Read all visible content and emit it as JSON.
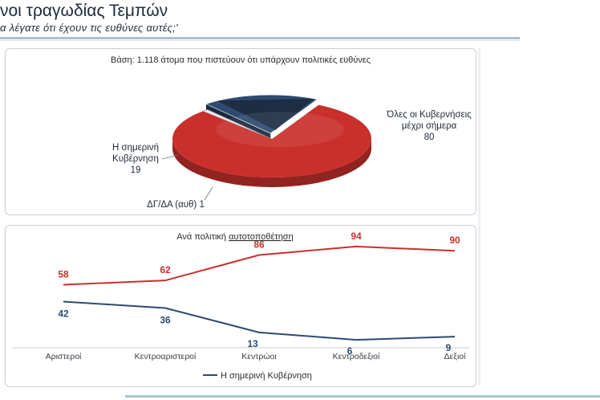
{
  "header": {
    "title": "νοι τραγωδίας Τεμπών",
    "subtitle": "α λέγατε ότι έχουν τις ευθύνες αυτές;'"
  },
  "colors": {
    "red": "#c9302c",
    "blue": "#2e4a70",
    "dark": "#1c2a3a"
  },
  "chart_data": [
    {
      "type": "pie",
      "title": "Βάση: 1.118 άτομα που πιστεύουν ότι υπάρχουν πολιτικές ευθύνες",
      "slices": [
        {
          "label_lines": [
            "Όλες οι Κυβερνήσεις",
            "μέχρι σήμερα"
          ],
          "value": 80,
          "value_label": "80",
          "color": "#c9302c"
        },
        {
          "label_lines": [
            "Η σημερινή",
            "Κυβέρνηση"
          ],
          "value": 19,
          "value_label": "19",
          "color": "#2e4a70"
        },
        {
          "label_lines": [
            "ΔΓ/ΔΑ (αυθ)"
          ],
          "value": 1,
          "value_label": "1",
          "color": "#e9e9e9"
        }
      ]
    },
    {
      "type": "line",
      "title_prefix": "Ανά πολιτική ",
      "title_underlined": "αυτοτοποθέτηση",
      "categories": [
        "Αριστεροί",
        "Κεντροαριστεροί",
        "Κεντρώοι",
        "Κεντροδεξιοί",
        "Δεξιοί"
      ],
      "ylim": [
        0,
        100
      ],
      "legend_position": "bottom",
      "series": [
        {
          "values": [
            58,
            62,
            86,
            94,
            90
          ],
          "labels": [
            "58",
            "62",
            "86",
            "94",
            "90"
          ],
          "color": "#c9302c"
        },
        {
          "name": "Η σημερινή Κυβέρνηση",
          "values": [
            42,
            36,
            13,
            6,
            9
          ],
          "labels": [
            "42",
            "36",
            "13",
            "6",
            "9"
          ],
          "color": "#2e4a70"
        }
      ]
    }
  ]
}
